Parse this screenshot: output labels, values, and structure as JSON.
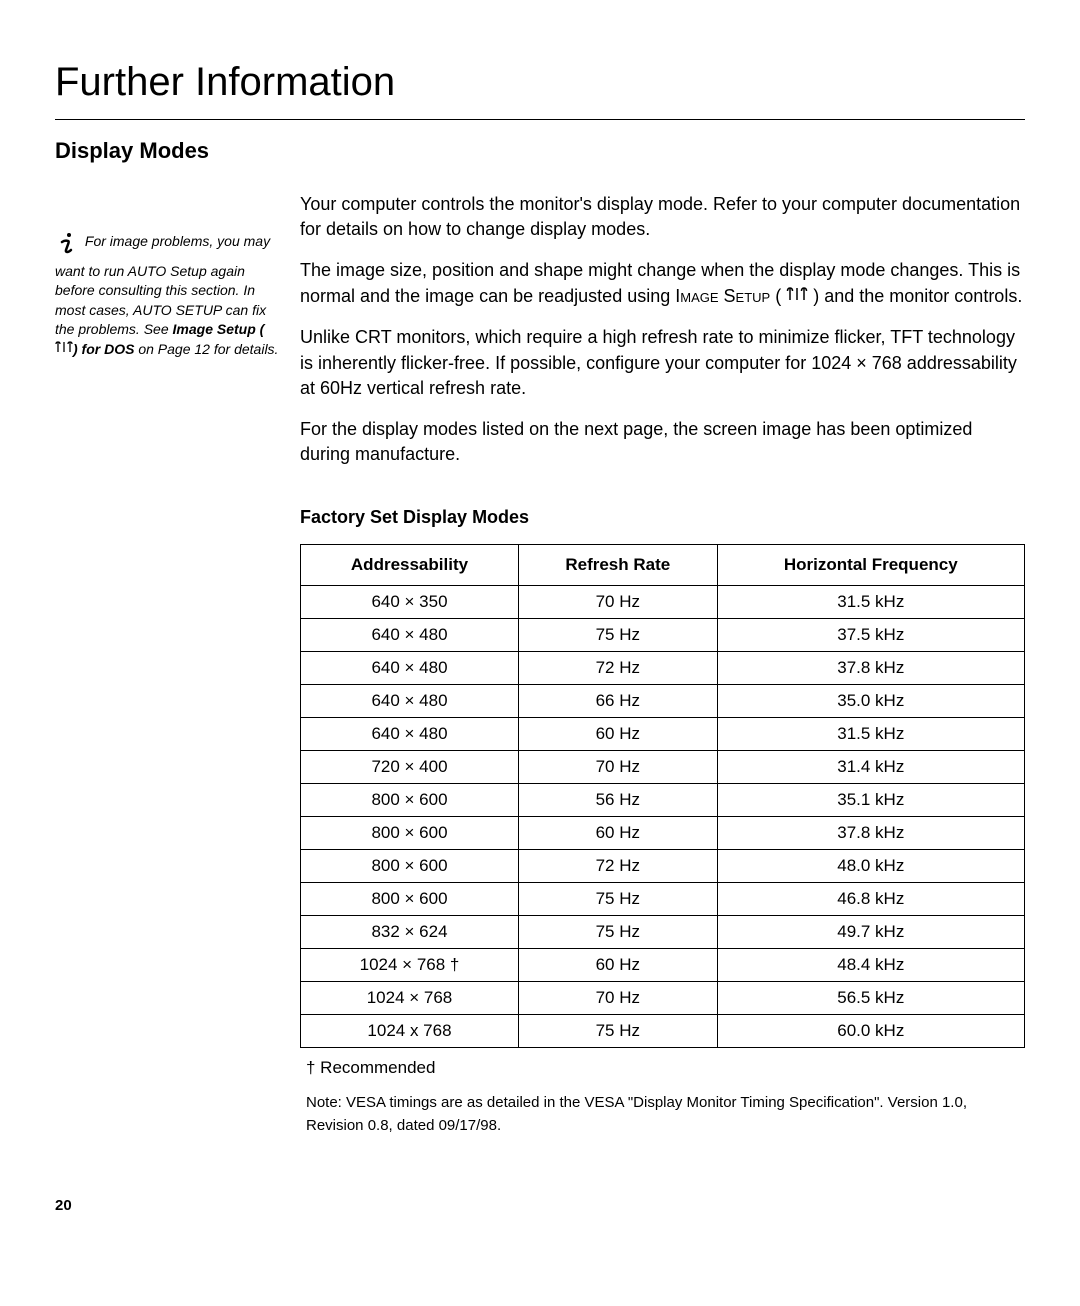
{
  "page": {
    "title": "Further Information",
    "number": "20"
  },
  "section": {
    "heading": "Display Modes"
  },
  "paragraphs": {
    "p1": "Your computer controls the monitor's display mode. Refer to your computer documentation for details on how to change display modes.",
    "p2_a": "The image size, position and shape might change when the display mode changes. This is normal and the image can be readjusted using ",
    "p2_smallcaps": "Image Setup",
    "p2_b": " ( ",
    "p2_c": " ) and the monitor controls.",
    "p3": "Unlike CRT monitors, which require a high refresh rate to minimize flicker, TFT technology is inherently flicker-free. If possible, configure your computer for 1024 × 768 addressability at 60Hz vertical refresh rate.",
    "p4": "For the display modes listed on the next page, the screen image has been optimized during manufacture."
  },
  "sidebar": {
    "text_a": "For image problems, you may want to run AUTO Setup again before consulting this section. In most cases, AUTO SETUP can fix the problems. See ",
    "text_bold": "Image Setup (",
    "text_bold2": ") for DOS",
    "text_b": " on Page 12 for details."
  },
  "table": {
    "heading": "Factory Set Display Modes",
    "columns": [
      "Addressability",
      "Refresh Rate",
      "Horizontal Frequency"
    ],
    "rows": [
      [
        "640 × 350",
        "70 Hz",
        "31.5 kHz"
      ],
      [
        "640 × 480",
        "75 Hz",
        "37.5 kHz"
      ],
      [
        "640 × 480",
        "72 Hz",
        "37.8 kHz"
      ],
      [
        "640 × 480",
        "66 Hz",
        "35.0 kHz"
      ],
      [
        "640 × 480",
        "60 Hz",
        "31.5 kHz"
      ],
      [
        "720 × 400",
        "70 Hz",
        "31.4 kHz"
      ],
      [
        "800 × 600",
        "56 Hz",
        "35.1 kHz"
      ],
      [
        "800 × 600",
        "60 Hz",
        "37.8 kHz"
      ],
      [
        "800 × 600",
        "72 Hz",
        "48.0 kHz"
      ],
      [
        "800 × 600",
        "75 Hz",
        "46.8 kHz"
      ],
      [
        "832 × 624",
        "75 Hz",
        "49.7 kHz"
      ],
      [
        "1024 × 768   †",
        "60 Hz",
        "48.4 kHz"
      ],
      [
        "1024 × 768",
        "70 Hz",
        "56.5 kHz"
      ],
      [
        "1024 x 768",
        "75 Hz",
        "60.0 kHz"
      ]
    ],
    "footnote": "† Recommended",
    "note": "Note: VESA timings are as detailed in the VESA \"Display Monitor Timing Specification\". Version 1.0, Revision 0.8, dated 09/17/98."
  },
  "icons": {
    "setup_icon_color": "#000000",
    "info_icon_color": "#000000"
  }
}
